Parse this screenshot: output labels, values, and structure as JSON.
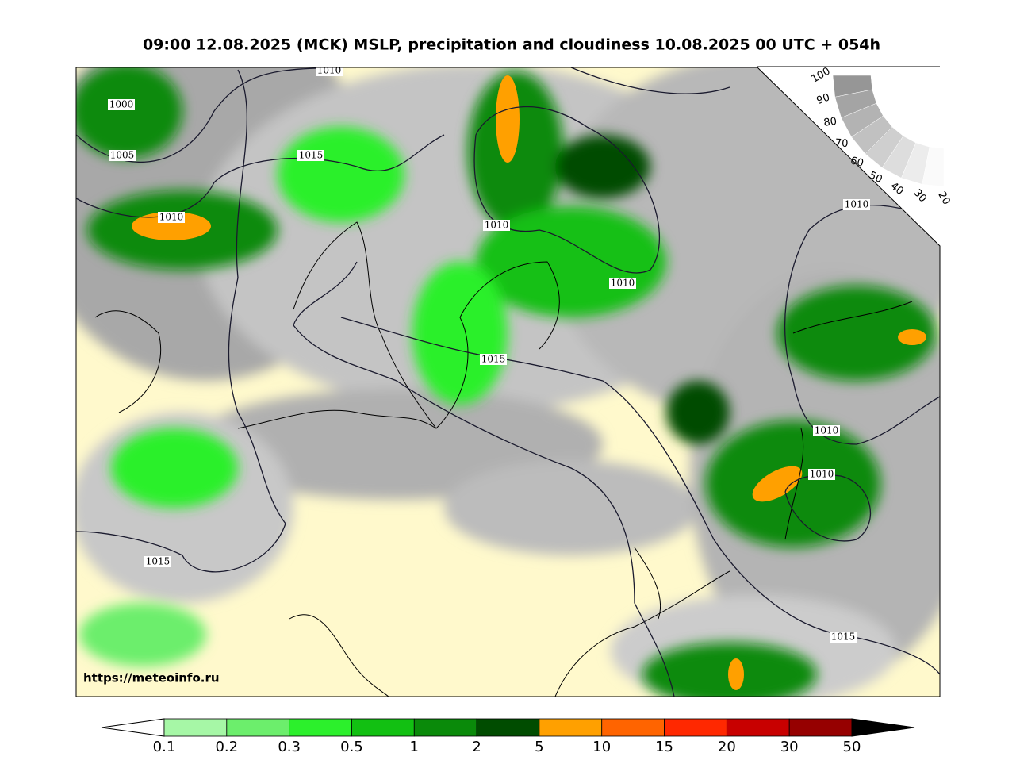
{
  "header": {
    "title": "09:00 12.08.2025 (MCK) MSLP, precipitation and cloudiness 10.08.2025 00 UTC + 054h"
  },
  "map": {
    "isobar_labels": [
      "1010",
      "1000",
      "1005",
      "1015",
      "1010",
      "1010",
      "1010",
      "1015",
      "1010",
      "1010",
      "1010",
      "1015",
      "1015"
    ],
    "source": "https://meteoinfo.ru"
  },
  "cloud_scale": {
    "labels": [
      "100",
      "90",
      "80",
      "70",
      "60",
      "50",
      "40",
      "30",
      "20"
    ]
  },
  "colorbar": {
    "ticks": [
      "0.1",
      "0.2",
      "0.3",
      "0.5",
      "1",
      "2",
      "5",
      "10",
      "15",
      "20",
      "30",
      "50"
    ],
    "colors": [
      "#a6f7a6",
      "#6cee6c",
      "#2cf02c",
      "#12c012",
      "#0a8a0a",
      "#004c00",
      "#ffa000",
      "#ff6400",
      "#ff2800",
      "#c80000",
      "#960000"
    ]
  }
}
